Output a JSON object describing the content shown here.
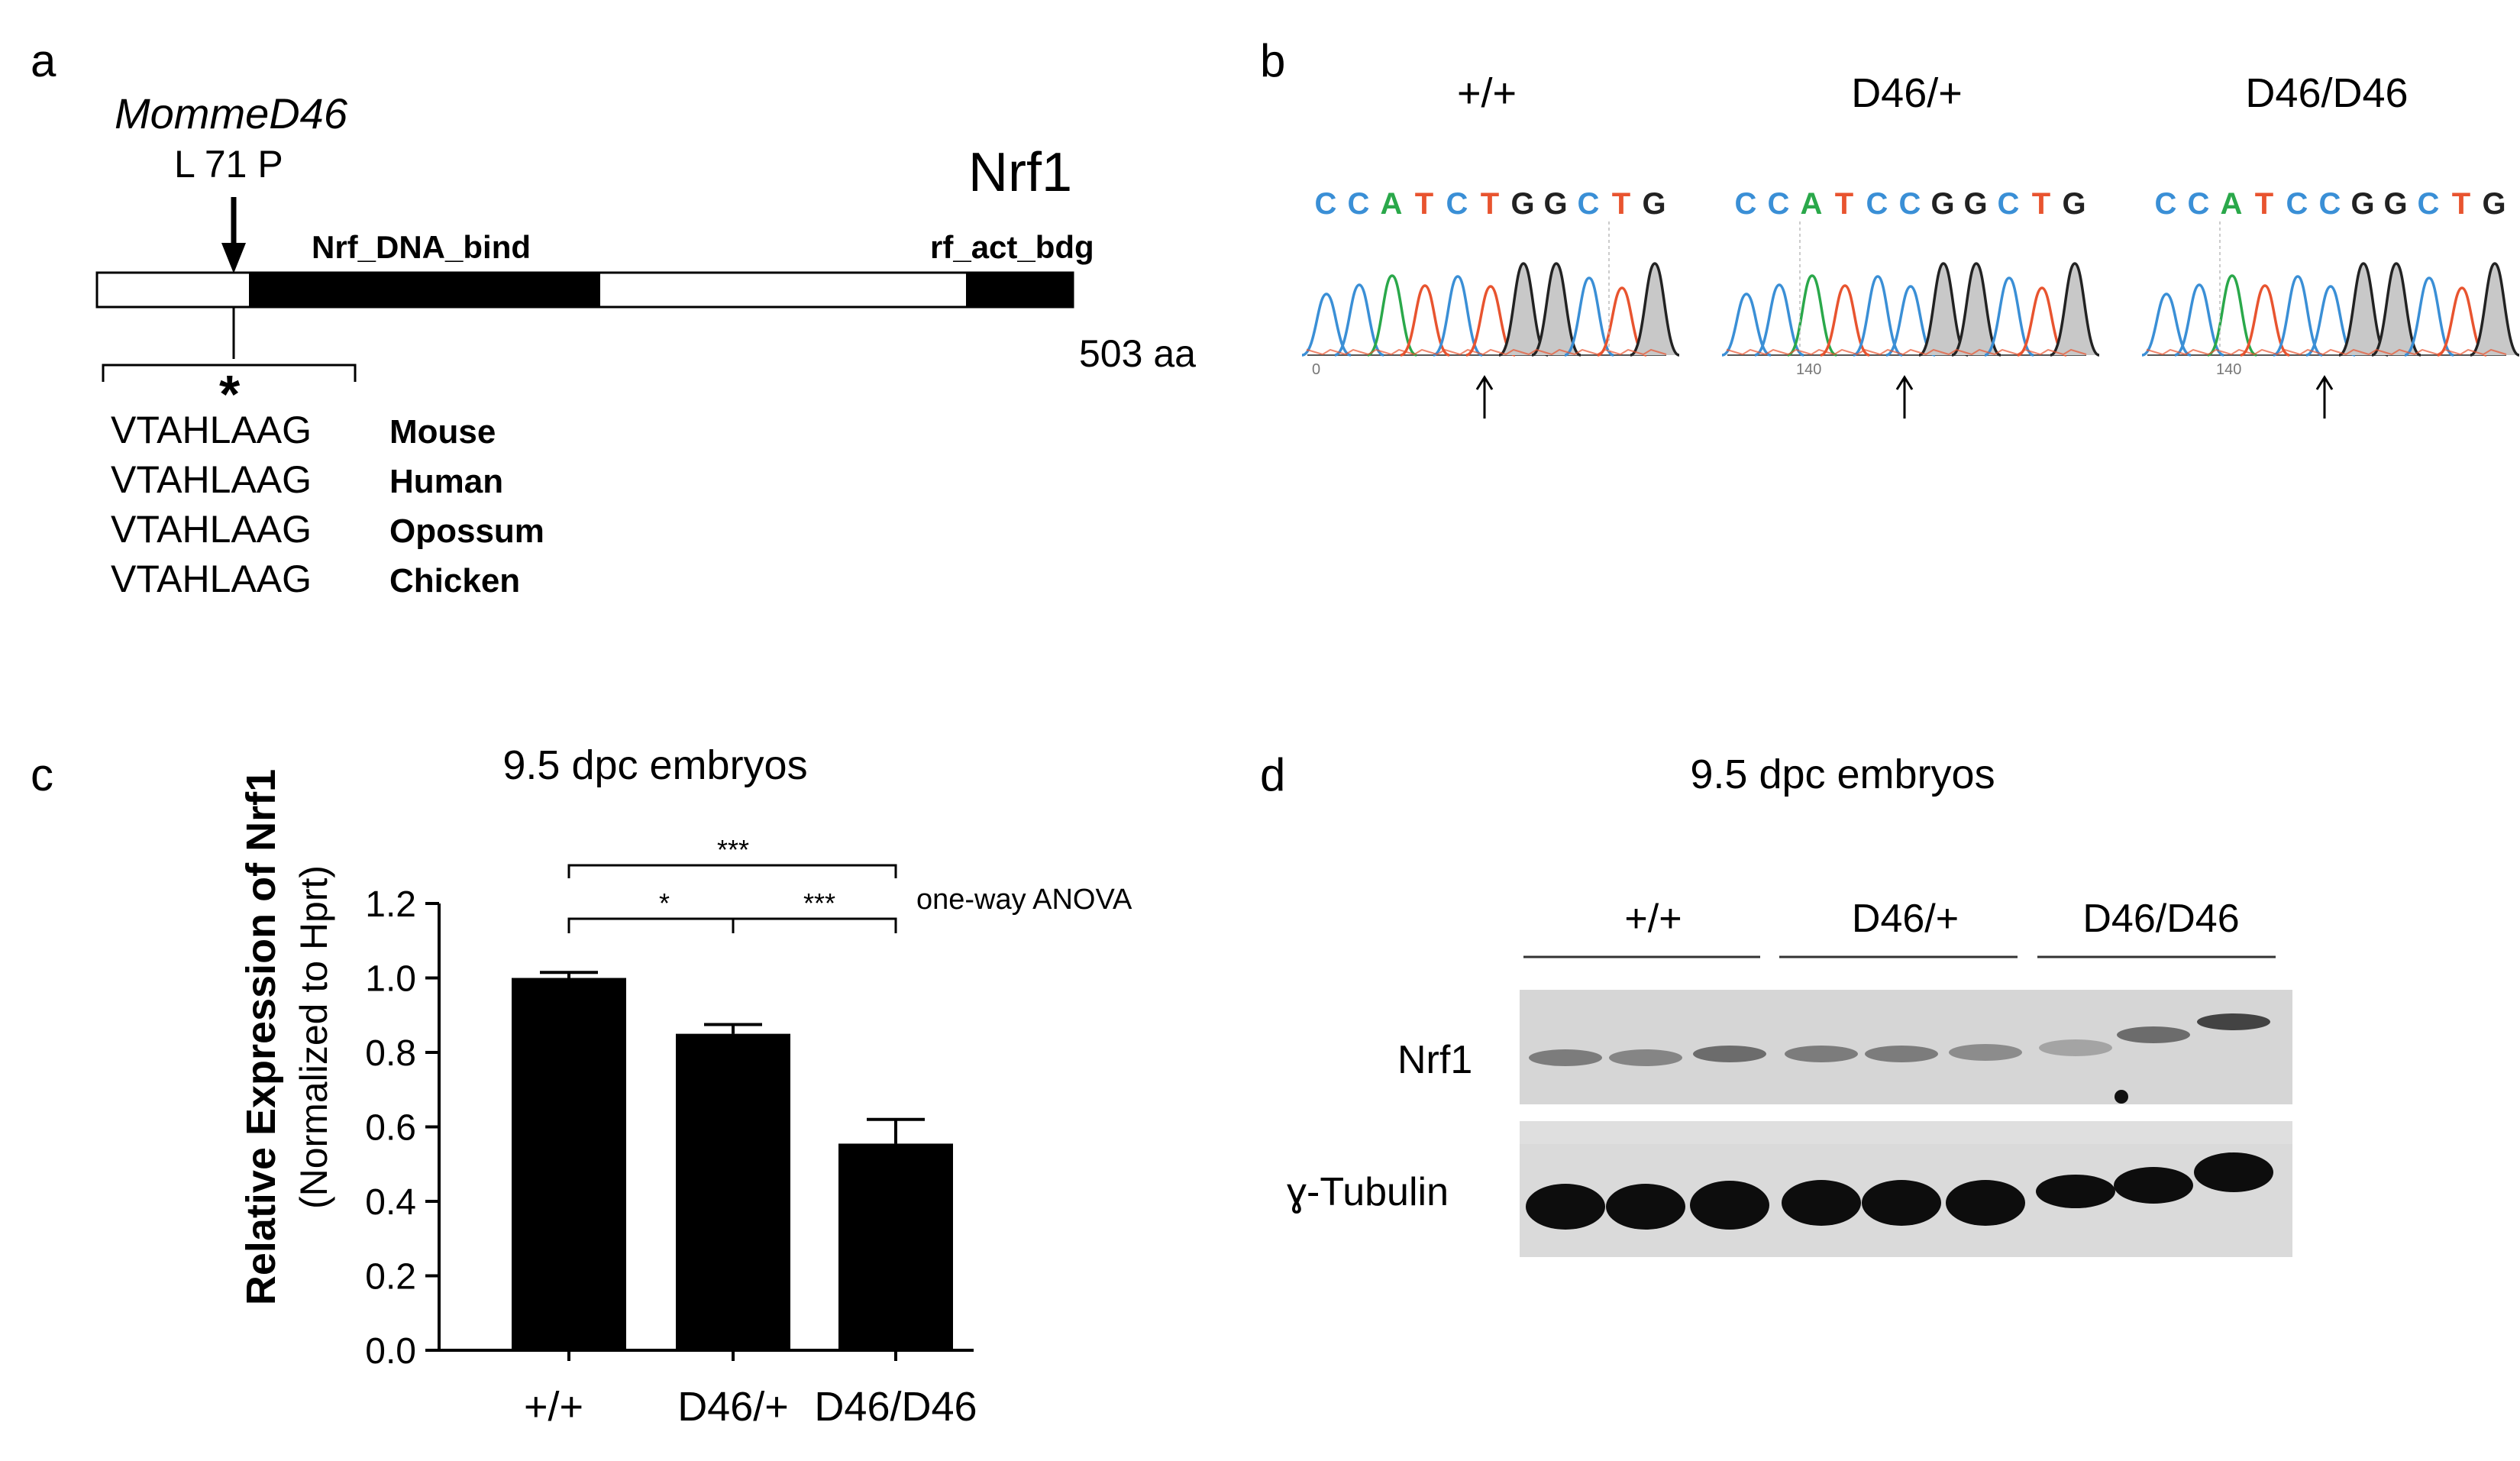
{
  "panel_a": {
    "letter": "a",
    "mutant_name": "MommeD46",
    "mutation": "L 71 P",
    "protein_name": "Nrf1",
    "domain_dna_bind": "Nrf_DNA_bind",
    "domain_act_bdg": "rf_act_bdg",
    "length": "503 aa",
    "asterisk": "*",
    "alignment": [
      {
        "seq": "VTAHLAAG",
        "species": "Mouse"
      },
      {
        "seq": "VTAHLAAG",
        "species": "Human"
      },
      {
        "seq": "VTAHLAAG",
        "species": "Opossum"
      },
      {
        "seq": "VTAHLAAG",
        "species": "Chicken"
      }
    ]
  },
  "panel_b": {
    "letter": "b",
    "genotypes": [
      {
        "label": "+/+",
        "bases": [
          "C",
          "C",
          "A",
          "T",
          "C",
          "T",
          "G",
          "G",
          "C",
          "T",
          "G"
        ],
        "tick": "0"
      },
      {
        "label": "D46/+",
        "bases": [
          "C",
          "C",
          "A",
          "T",
          "C",
          "C",
          "G",
          "G",
          "C",
          "T",
          "G"
        ],
        "tick": "140"
      },
      {
        "label": "D46/D46",
        "bases": [
          "C",
          "C",
          "A",
          "T",
          "C",
          "C",
          "G",
          "G",
          "C",
          "T",
          "G"
        ],
        "tick": "140"
      }
    ],
    "tick_ws": "140",
    "base_colors": {
      "C": "#3a8fd6",
      "A": "#2aa84a",
      "T": "#e8542f",
      "G": "#222222"
    }
  },
  "panel_c": {
    "letter": "c",
    "title": "9.5 dpc embryos",
    "anova_label": "one-way ANOVA",
    "sig_top": "***",
    "sig_left": "*",
    "sig_right": "***",
    "chart_data": {
      "type": "bar",
      "title": "9.5 dpc embryos",
      "ylabel_line1": "Relative Expression of Nrf1",
      "ylabel_line2": "(Normalized to Hprt)",
      "categories": [
        "+/+",
        "D46/+",
        "D46/D46"
      ],
      "values": [
        1.0,
        0.85,
        0.555
      ],
      "errors": [
        0.015,
        0.025,
        0.065
      ],
      "ylim": [
        0,
        1.2
      ],
      "yticks": [
        "0.0",
        "0.2",
        "0.4",
        "0.6",
        "0.8",
        "1.0",
        "1.2"
      ]
    }
  },
  "panel_d": {
    "letter": "d",
    "title": "9.5 dpc embryos",
    "groups": [
      "+/+",
      "D46/+",
      "D46/D46"
    ],
    "row_labels": [
      "Nrf1",
      "ɣ-Tubulin"
    ]
  }
}
